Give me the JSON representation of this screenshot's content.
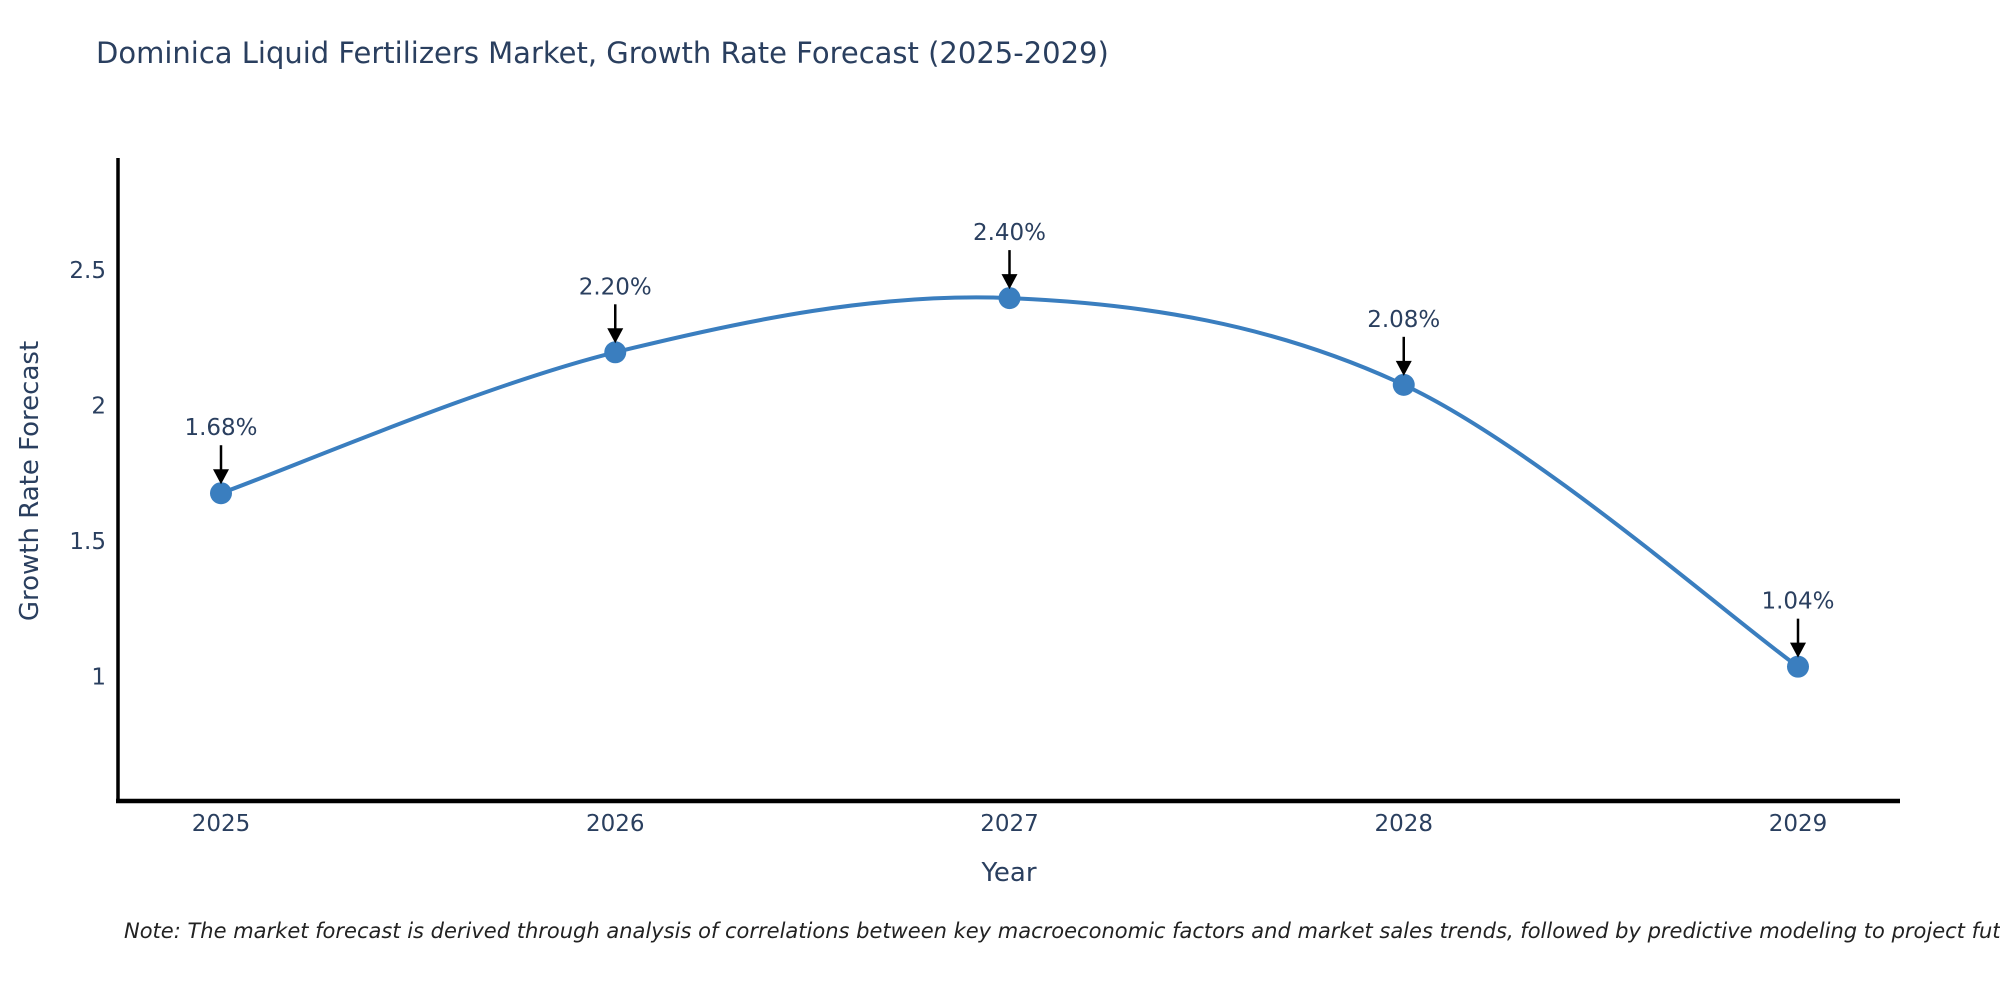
{
  "chart_data": {
    "type": "line",
    "title": "Dominica Liquid Fertilizers Market, Growth Rate Forecast (2025-2029)",
    "xlabel": "Year",
    "ylabel": "Growth Rate Forecast",
    "x": [
      "2025",
      "2026",
      "2027",
      "2028",
      "2029"
    ],
    "values": [
      1.68,
      2.2,
      2.4,
      2.08,
      1.04
    ],
    "point_labels": [
      "1.68%",
      "2.20%",
      "2.40%",
      "2.08%",
      "1.04%"
    ],
    "yticks": [
      2.5,
      2,
      1.5,
      1
    ],
    "ylim": [
      0.54,
      2.93
    ],
    "line_shape": "spline",
    "grid": false,
    "legend": "none",
    "line_color": "#3a7ebf",
    "marker_color": "#3a7ebf",
    "axis_color": "#000000",
    "annotation_arrow_color": "#000000",
    "text_color": "#2a3f5f",
    "note": "Note: The market forecast is derived through analysis of correlations between key macroeconomic factors and market sales trends, followed by predictive modeling to project future sales"
  }
}
